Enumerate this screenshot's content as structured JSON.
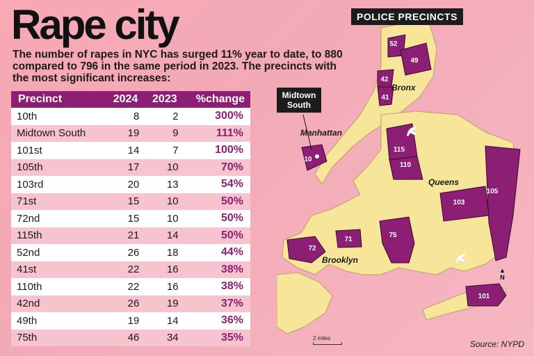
{
  "headline": "Rape city",
  "subtitle": "The number of rapes in NYC has surged 11% year to date, to 880 compared to 796 in the same period in 2023. The precincts with the most significant increases:",
  "table": {
    "headers": [
      "Precinct",
      "2024",
      "2023",
      "%change"
    ],
    "rows": [
      [
        "10th",
        "8",
        "2",
        "300%"
      ],
      [
        "Midtown South",
        "19",
        "9",
        "111%"
      ],
      [
        "101st",
        "14",
        "7",
        "100%"
      ],
      [
        "105th",
        "17",
        "10",
        "70%"
      ],
      [
        "103rd",
        "20",
        "13",
        "54%"
      ],
      [
        "71st",
        "15",
        "10",
        "50%"
      ],
      [
        "72nd",
        "15",
        "10",
        "50%"
      ],
      [
        "115th",
        "21",
        "14",
        "50%"
      ],
      [
        "52nd",
        "26",
        "18",
        "44%"
      ],
      [
        "41st",
        "22",
        "16",
        "38%"
      ],
      [
        "110th",
        "22",
        "16",
        "38%"
      ],
      [
        "42nd",
        "26",
        "19",
        "37%"
      ],
      [
        "49th",
        "19",
        "14",
        "36%"
      ],
      [
        "75th",
        "46",
        "34",
        "35%"
      ]
    ]
  },
  "map": {
    "title": "POLICE PRECINCTS",
    "callout": "Midtown South",
    "boroughs": [
      "Bronx",
      "Manhattan",
      "Queens",
      "Brooklyn"
    ],
    "precinct_labels": [
      "52",
      "49",
      "42",
      "41",
      "115",
      "110",
      "10",
      "105",
      "103",
      "75",
      "71",
      "72",
      "101"
    ],
    "north": "N",
    "scale": "2 miles"
  },
  "source": "Source: NYPD",
  "colors": {
    "accent": "#8c1e73",
    "land": "#f7e59a",
    "water": "#f4a9b6"
  }
}
